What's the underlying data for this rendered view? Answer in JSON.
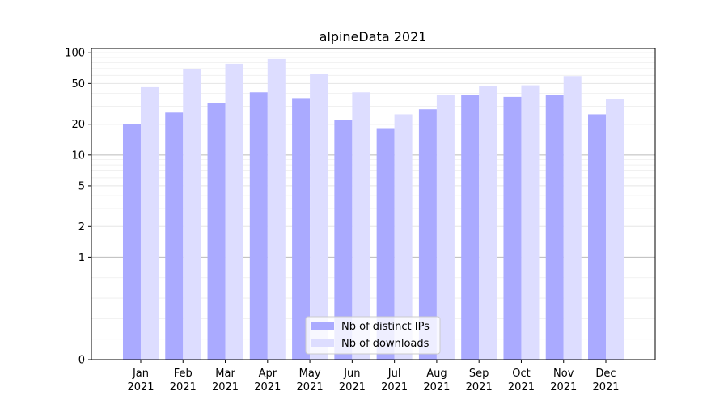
{
  "chart_data": {
    "type": "bar",
    "title": "alpineData 2021",
    "xlabel": "",
    "ylabel": "",
    "scale": "symlog",
    "ylim": [
      0,
      110
    ],
    "y_ticks": [
      0,
      1,
      2,
      5,
      10,
      20,
      50,
      100
    ],
    "y_tick_labels": [
      "0",
      "1",
      "2",
      "5",
      "10",
      "20",
      "50",
      "100"
    ],
    "categories": [
      "Jan",
      "Feb",
      "Mar",
      "Apr",
      "May",
      "Jun",
      "Jul",
      "Aug",
      "Sep",
      "Oct",
      "Nov",
      "Dec"
    ],
    "category_sublabels": [
      "2021",
      "2021",
      "2021",
      "2021",
      "2021",
      "2021",
      "2021",
      "2021",
      "2021",
      "2021",
      "2021",
      "2021"
    ],
    "series": [
      {
        "name": "Nb of distinct IPs",
        "color": "#aaaaff",
        "values": [
          20,
          26,
          32,
          41,
          36,
          22,
          18,
          28,
          39,
          37,
          39,
          25
        ]
      },
      {
        "name": "Nb of downloads",
        "color": "#ddddff",
        "values": [
          46,
          69,
          78,
          87,
          62,
          41,
          25,
          39,
          47,
          48,
          59,
          35
        ]
      }
    ],
    "legend_position": "bottom-center",
    "grid": true
  }
}
